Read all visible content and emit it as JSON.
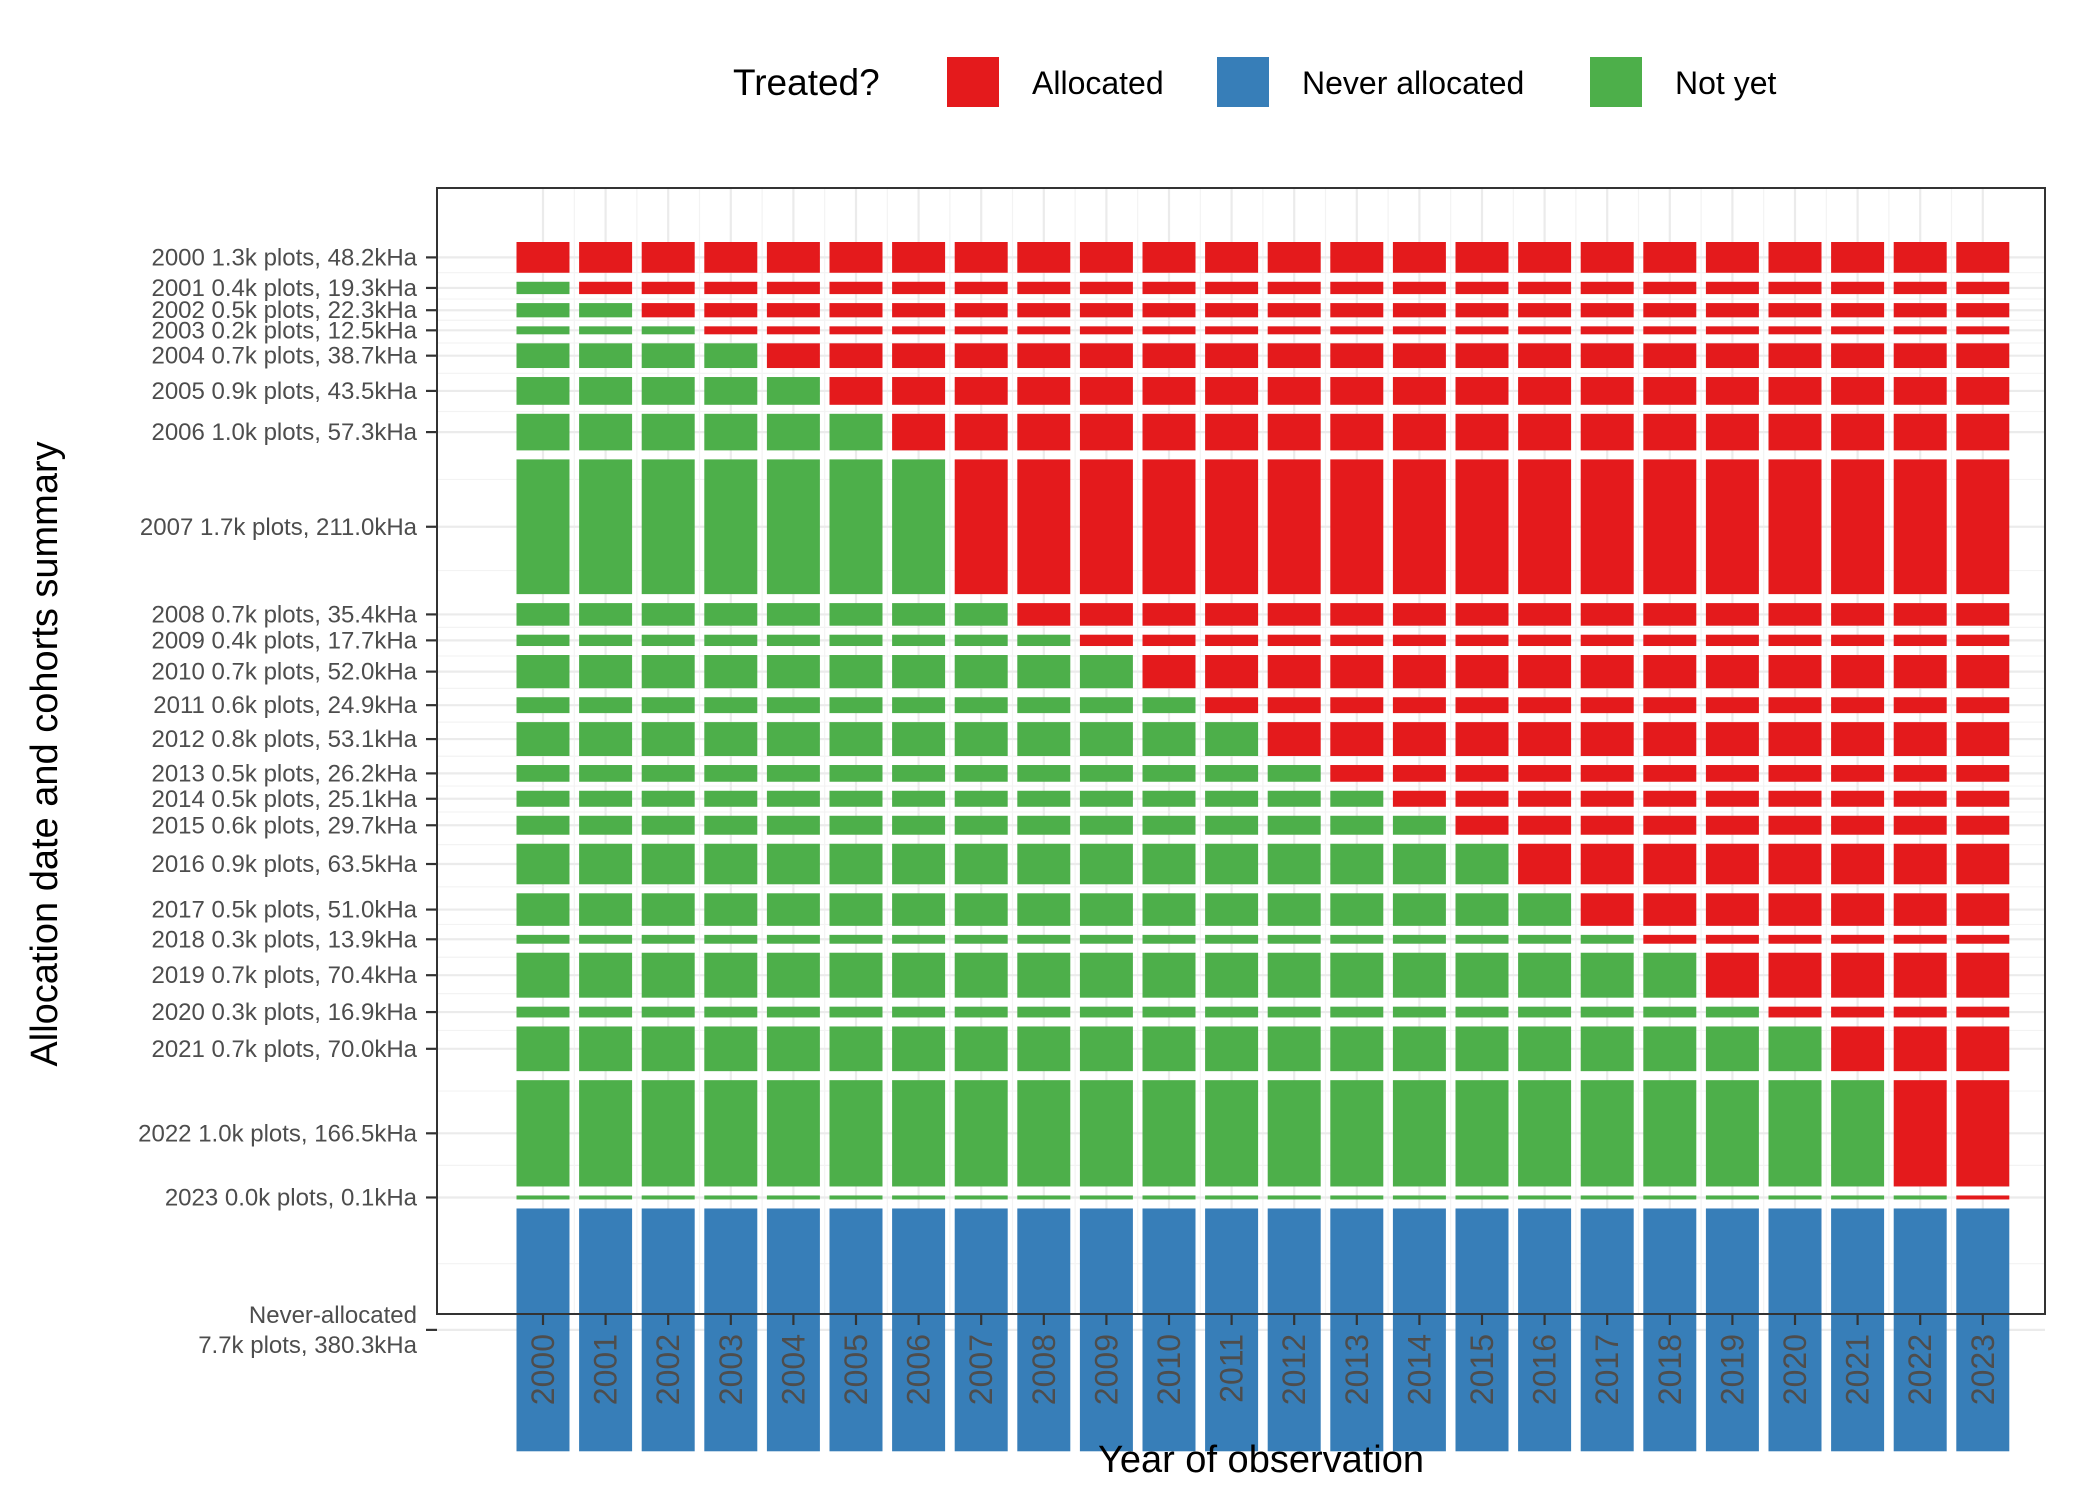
{
  "chart_data": {
    "type": "heatmap",
    "title": "",
    "xlabel": "Year of observation",
    "ylabel": "Allocation date and cohorts summary",
    "x": [
      "2000",
      "2001",
      "2002",
      "2003",
      "2004",
      "2005",
      "2006",
      "2007",
      "2008",
      "2009",
      "2010",
      "2011",
      "2012",
      "2013",
      "2014",
      "2015",
      "2016",
      "2017",
      "2018",
      "2019",
      "2020",
      "2021",
      "2022",
      "2023"
    ],
    "legend": {
      "title": "Treated?",
      "placement": "top",
      "entries": [
        {
          "name": "Allocated",
          "color": "#E41A1C"
        },
        {
          "name": "Never allocated",
          "color": "#377EB8"
        },
        {
          "name": "Not yet",
          "color": "#4DAF4A"
        }
      ]
    },
    "cohorts": [
      {
        "label": [
          "2000 1.3k plots, 48.2kHa"
        ],
        "year": 2000,
        "area_kha": 48.2
      },
      {
        "label": [
          "2001 0.4k plots, 19.3kHa"
        ],
        "year": 2001,
        "area_kha": 19.3
      },
      {
        "label": [
          "2002 0.5k plots, 22.3kHa"
        ],
        "year": 2002,
        "area_kha": 22.3
      },
      {
        "label": [
          "2003 0.2k plots, 12.5kHa"
        ],
        "year": 2003,
        "area_kha": 12.5
      },
      {
        "label": [
          "2004 0.7k plots, 38.7kHa"
        ],
        "year": 2004,
        "area_kha": 38.7
      },
      {
        "label": [
          "2005 0.9k plots, 43.5kHa"
        ],
        "year": 2005,
        "area_kha": 43.5
      },
      {
        "label": [
          "2006 1.0k plots, 57.3kHa"
        ],
        "year": 2006,
        "area_kha": 57.3
      },
      {
        "label": [
          "2007 1.7k plots, 211.0kHa"
        ],
        "year": 2007,
        "area_kha": 211.0
      },
      {
        "label": [
          "2008 0.7k plots, 35.4kHa"
        ],
        "year": 2008,
        "area_kha": 35.4
      },
      {
        "label": [
          "2009 0.4k plots, 17.7kHa"
        ],
        "year": 2009,
        "area_kha": 17.7
      },
      {
        "label": [
          "2010 0.7k plots, 52.0kHa"
        ],
        "year": 2010,
        "area_kha": 52.0
      },
      {
        "label": [
          "2011 0.6k plots, 24.9kHa"
        ],
        "year": 2011,
        "area_kha": 24.9
      },
      {
        "label": [
          "2012 0.8k plots, 53.1kHa"
        ],
        "year": 2012,
        "area_kha": 53.1
      },
      {
        "label": [
          "2013 0.5k plots, 26.2kHa"
        ],
        "year": 2013,
        "area_kha": 26.2
      },
      {
        "label": [
          "2014 0.5k plots, 25.1kHa"
        ],
        "year": 2014,
        "area_kha": 25.1
      },
      {
        "label": [
          "2015 0.6k plots, 29.7kHa"
        ],
        "year": 2015,
        "area_kha": 29.7
      },
      {
        "label": [
          "2016 0.9k plots, 63.5kHa"
        ],
        "year": 2016,
        "area_kha": 63.5
      },
      {
        "label": [
          "2017 0.5k plots, 51.0kHa"
        ],
        "year": 2017,
        "area_kha": 51.0
      },
      {
        "label": [
          "2018 0.3k plots, 13.9kHa"
        ],
        "year": 2018,
        "area_kha": 13.9
      },
      {
        "label": [
          "2019 0.7k plots, 70.4kHa"
        ],
        "year": 2019,
        "area_kha": 70.4
      },
      {
        "label": [
          "2020 0.3k plots, 16.9kHa"
        ],
        "year": 2020,
        "area_kha": 16.9
      },
      {
        "label": [
          "2021 0.7k plots, 70.0kHa"
        ],
        "year": 2021,
        "area_kha": 70.0
      },
      {
        "label": [
          "2022 1.0k plots, 166.5kHa"
        ],
        "year": 2022,
        "area_kha": 166.5
      },
      {
        "label": [
          "2023 0.0k plots, 0.1kHa"
        ],
        "year": 2023,
        "area_kha": 0.1
      },
      {
        "label": [
          "Never-allocated",
          "7.7k plots, 380.3kHa"
        ],
        "year": null,
        "area_kha": 380.3
      }
    ],
    "grid": true
  }
}
